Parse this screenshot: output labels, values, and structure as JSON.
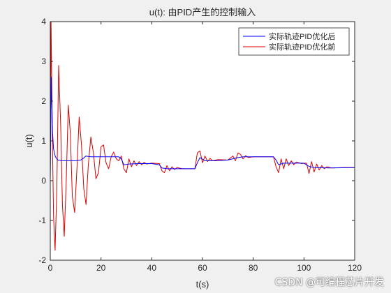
{
  "watermark": "CSDN @可编程芯片开发",
  "chart_data": {
    "type": "line",
    "title": "u(t): 由PID产生的控制输入",
    "xlabel": "t(s)",
    "ylabel": "u(t)",
    "xlim": [
      0,
      120
    ],
    "ylim": [
      -2,
      4
    ],
    "xticks": [
      0,
      20,
      40,
      60,
      80,
      100,
      120
    ],
    "yticks": [
      -2,
      -1,
      0,
      1,
      2,
      3,
      4
    ],
    "grid": false,
    "legend_position": "top-right",
    "series": [
      {
        "name": "实际轨迹PID优化后",
        "color": "#0000ff",
        "points": [
          [
            0,
            0
          ],
          [
            0.2,
            1.4
          ],
          [
            0.4,
            2.6
          ],
          [
            0.6,
            2.0
          ],
          [
            0.9,
            1.2
          ],
          [
            1.3,
            0.8
          ],
          [
            2,
            0.6
          ],
          [
            3,
            0.52
          ],
          [
            5,
            0.5
          ],
          [
            10,
            0.5
          ],
          [
            12,
            0.52
          ],
          [
            13,
            0.56
          ],
          [
            14,
            0.62
          ],
          [
            16,
            0.6
          ],
          [
            20,
            0.6
          ],
          [
            27,
            0.6
          ],
          [
            28,
            0.55
          ],
          [
            29,
            0.4
          ],
          [
            31,
            0.42
          ],
          [
            35,
            0.43
          ],
          [
            40,
            0.43
          ],
          [
            43,
            0.4
          ],
          [
            44,
            0.32
          ],
          [
            46,
            0.3
          ],
          [
            50,
            0.3
          ],
          [
            57,
            0.3
          ],
          [
            58,
            0.45
          ],
          [
            59,
            0.58
          ],
          [
            61,
            0.5
          ],
          [
            65,
            0.5
          ],
          [
            70,
            0.52
          ],
          [
            74,
            0.58
          ],
          [
            76,
            0.6
          ],
          [
            80,
            0.6
          ],
          [
            88,
            0.6
          ],
          [
            89,
            0.52
          ],
          [
            90,
            0.4
          ],
          [
            92,
            0.44
          ],
          [
            96,
            0.44
          ],
          [
            100,
            0.44
          ],
          [
            102,
            0.36
          ],
          [
            104,
            0.33
          ],
          [
            110,
            0.32
          ],
          [
            120,
            0.33
          ]
        ]
      },
      {
        "name": "实际轨迹PID优化前",
        "color": "#dd0000",
        "points": [
          [
            0,
            0
          ],
          [
            0.3,
            4.0
          ],
          [
            0.8,
            1.2
          ],
          [
            1.3,
            -0.9
          ],
          [
            1.9,
            -1.75
          ],
          [
            2.6,
            -0.2
          ],
          [
            3.3,
            2.9
          ],
          [
            4.1,
            1.4
          ],
          [
            4.8,
            -0.6
          ],
          [
            5.5,
            -1.4
          ],
          [
            6.3,
            0.0
          ],
          [
            7.1,
            1.9
          ],
          [
            7.9,
            1.2
          ],
          [
            8.7,
            -0.4
          ],
          [
            9.6,
            -0.8
          ],
          [
            10.5,
            0.3
          ],
          [
            11.4,
            1.6
          ],
          [
            12.3,
            0.9
          ],
          [
            13.2,
            -0.2
          ],
          [
            14.1,
            -0.6
          ],
          [
            15.0,
            0.4
          ],
          [
            16.0,
            1.1
          ],
          [
            17.0,
            0.7
          ],
          [
            18.0,
            0.05
          ],
          [
            19.0,
            0.2
          ],
          [
            20.0,
            0.85
          ],
          [
            21.0,
            0.9
          ],
          [
            22.0,
            0.45
          ],
          [
            23.0,
            0.3
          ],
          [
            24.0,
            0.6
          ],
          [
            25.0,
            0.72
          ],
          [
            26.0,
            0.55
          ],
          [
            27.0,
            0.5
          ],
          [
            28.0,
            0.62
          ],
          [
            29.0,
            0.3
          ],
          [
            30.0,
            0.2
          ],
          [
            31.0,
            0.55
          ],
          [
            32.0,
            0.35
          ],
          [
            33.0,
            0.5
          ],
          [
            34.0,
            0.38
          ],
          [
            35.0,
            0.48
          ],
          [
            36.0,
            0.4
          ],
          [
            37.0,
            0.46
          ],
          [
            38.0,
            0.42
          ],
          [
            40.0,
            0.44
          ],
          [
            43.0,
            0.43
          ],
          [
            44.0,
            0.25
          ],
          [
            45.0,
            0.2
          ],
          [
            46.0,
            0.38
          ],
          [
            47.0,
            0.25
          ],
          [
            48.0,
            0.35
          ],
          [
            49.0,
            0.28
          ],
          [
            50.0,
            0.33
          ],
          [
            52.0,
            0.3
          ],
          [
            57.0,
            0.3
          ],
          [
            58.0,
            0.7
          ],
          [
            59.0,
            0.75
          ],
          [
            60.0,
            0.45
          ],
          [
            61.0,
            0.62
          ],
          [
            62.0,
            0.48
          ],
          [
            63.0,
            0.56
          ],
          [
            64.0,
            0.5
          ],
          [
            66.0,
            0.53
          ],
          [
            70.0,
            0.52
          ],
          [
            72.0,
            0.62
          ],
          [
            73.0,
            0.5
          ],
          [
            74.0,
            0.7
          ],
          [
            75.0,
            0.66
          ],
          [
            76.0,
            0.55
          ],
          [
            77.0,
            0.63
          ],
          [
            78.0,
            0.58
          ],
          [
            80.0,
            0.6
          ],
          [
            88.0,
            0.6
          ],
          [
            89.0,
            0.35
          ],
          [
            90.0,
            0.2
          ],
          [
            91.0,
            0.55
          ],
          [
            92.0,
            0.3
          ],
          [
            93.0,
            0.55
          ],
          [
            94.0,
            0.38
          ],
          [
            95.0,
            0.5
          ],
          [
            96.0,
            0.4
          ],
          [
            97.0,
            0.47
          ],
          [
            99.0,
            0.43
          ],
          [
            101.0,
            0.44
          ],
          [
            102.0,
            0.18
          ],
          [
            103.0,
            0.48
          ],
          [
            104.0,
            0.22
          ],
          [
            105.0,
            0.42
          ],
          [
            106.0,
            0.27
          ],
          [
            107.0,
            0.38
          ],
          [
            108.0,
            0.3
          ],
          [
            109.0,
            0.35
          ],
          [
            111.0,
            0.32
          ],
          [
            115.0,
            0.33
          ],
          [
            120.0,
            0.33
          ]
        ]
      }
    ]
  }
}
